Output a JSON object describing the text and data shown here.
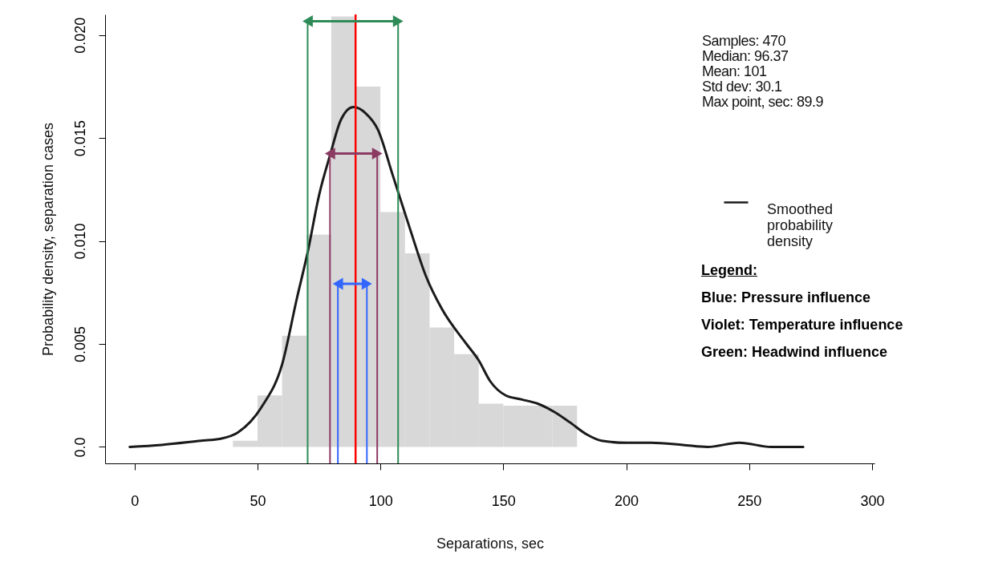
{
  "chart_data": {
    "type": "histogram",
    "xlabel": "Separations, sec",
    "ylabel": "Probability density, separation cases",
    "xlim": [
      -12,
      301
    ],
    "xticks": [
      0,
      50,
      100,
      150,
      200,
      250,
      300
    ],
    "ylim": [
      -0.0008,
      0.021
    ],
    "yticks": [
      {
        "value": 0,
        "label": "0.0"
      },
      0.005,
      {
        "value": 0.01,
        "label": "0.010"
      },
      0.015,
      {
        "value": 0.02,
        "label": "0.020"
      }
    ],
    "series": [
      {
        "color": "#d4d4d4",
        "bins": [
          40,
          50,
          60,
          70,
          80,
          90,
          100,
          110,
          120,
          130,
          140,
          150,
          160,
          170,
          180
        ],
        "values": [
          0.0003,
          0.0025,
          0.0054,
          0.0103,
          0.0209,
          0.0175,
          0.0114,
          0.0094,
          0.0058,
          0.0045,
          0.0021,
          0.002,
          0.002,
          0.002
        ]
      },
      {
        "type": "line",
        "name": "Smoothed probability density",
        "color": "#1a1a1a",
        "x": [
          -2,
          11,
          27,
          35,
          42,
          52,
          60,
          66,
          70.5,
          75,
          79.6,
          84,
          89,
          94,
          99,
          105,
          112,
          118.5,
          125,
          135,
          140,
          144.6,
          151,
          157.6,
          164,
          170.7,
          177,
          184,
          190,
          200,
          210,
          223,
          233,
          246,
          259,
          272
        ],
        "values": [
          0,
          0.0001,
          0.0003,
          0.0004,
          0.0007,
          0.002,
          0.004,
          0.0072,
          0.0095,
          0.0122,
          0.0142,
          0.0159,
          0.0165,
          0.0162,
          0.0154,
          0.0132,
          0.0106,
          0.0083,
          0.0067,
          0.005,
          0.0042,
          0.0032,
          0.0025,
          0.0023,
          0.0021,
          0.0017,
          0.0012,
          0.0006,
          0.0003,
          0.0002,
          0.0002,
          0.0001,
          0,
          0.0002,
          0,
          0
        ]
      }
    ],
    "ref_lines": [
      {
        "axis": "x",
        "value": 89.9,
        "color": "#ff0000"
      },
      {
        "axis": "x",
        "value": 82.7,
        "color": "#3366ff"
      },
      {
        "axis": "x",
        "value": 94.5,
        "color": "#3366ff"
      },
      {
        "axis": "x",
        "value": 79.5,
        "color": "#8b3a62"
      },
      {
        "axis": "x",
        "value": 98.7,
        "color": "#8b3a62"
      },
      {
        "axis": "x",
        "value": 70.4,
        "color": "#2e8b57"
      },
      {
        "axis": "x",
        "value": 107.2,
        "color": "#2e8b57"
      }
    ],
    "legend": "right",
    "annotations": [
      "Samples: 470",
      "Median: 96.37",
      "Mean: 101",
      "Std dev: 30.1",
      "Max point, sec: 89.9",
      "Legend:",
      "Blue: Pressure influence",
      "Violet: Temperature influence",
      "Green: Headwind influence"
    ]
  }
}
